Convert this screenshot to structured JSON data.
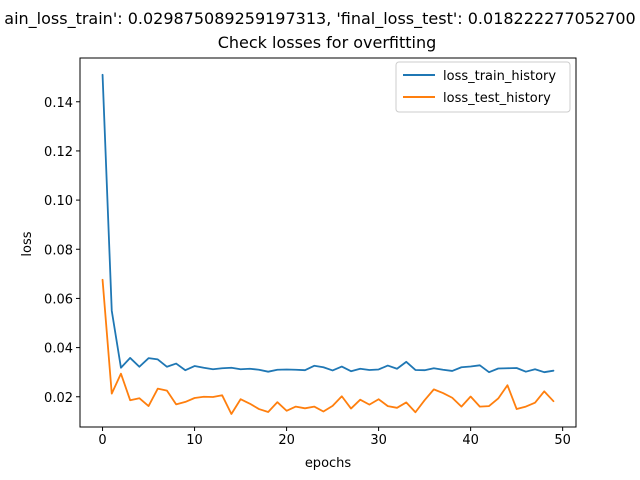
{
  "chart_data": {
    "type": "line",
    "suptitle": "ain_loss_train': 0.029875089259197313, 'final_loss_test': 0.018222277052700",
    "title": "Check losses for overfitting",
    "xlabel": "epochs",
    "ylabel": "loss",
    "xlim": [
      -2.45,
      51.45
    ],
    "ylim": [
      0.0077,
      0.1578
    ],
    "xticks": [
      0,
      10,
      20,
      30,
      40,
      50
    ],
    "yticks": [
      0.02,
      0.04,
      0.06,
      0.08,
      0.1,
      0.12,
      0.14
    ],
    "ytick_labels": [
      "0.02",
      "0.04",
      "0.06",
      "0.08",
      "0.10",
      "0.12",
      "0.14"
    ],
    "legend_position": "top-right",
    "x": [
      0,
      1,
      2,
      3,
      4,
      5,
      6,
      7,
      8,
      9,
      10,
      11,
      12,
      13,
      14,
      15,
      16,
      17,
      18,
      19,
      20,
      21,
      22,
      23,
      24,
      25,
      26,
      27,
      28,
      29,
      30,
      31,
      32,
      33,
      34,
      35,
      36,
      37,
      38,
      39,
      40,
      41,
      42,
      43,
      44,
      45,
      46,
      47,
      48,
      49
    ],
    "series": [
      {
        "name": "loss_train_history",
        "color": "#1f77b4",
        "values": [
          0.151,
          0.055,
          0.0318,
          0.0358,
          0.0322,
          0.0357,
          0.0352,
          0.0322,
          0.0335,
          0.0308,
          0.0325,
          0.0318,
          0.0312,
          0.0316,
          0.0318,
          0.0312,
          0.0314,
          0.031,
          0.0302,
          0.031,
          0.0311,
          0.031,
          0.0308,
          0.0326,
          0.032,
          0.0307,
          0.0323,
          0.0304,
          0.0314,
          0.0309,
          0.0311,
          0.0327,
          0.0314,
          0.0342,
          0.0309,
          0.0308,
          0.0316,
          0.031,
          0.0305,
          0.032,
          0.0323,
          0.0328,
          0.03,
          0.0315,
          0.0316,
          0.0317,
          0.0302,
          0.0312,
          0.03,
          0.0306
        ]
      },
      {
        "name": "loss_test_history",
        "color": "#ff7f0e",
        "values": [
          0.0676,
          0.0213,
          0.0294,
          0.0186,
          0.0194,
          0.0162,
          0.0233,
          0.0225,
          0.0169,
          0.0179,
          0.0195,
          0.02,
          0.0199,
          0.0206,
          0.013,
          0.019,
          0.0172,
          0.015,
          0.0138,
          0.0178,
          0.0143,
          0.016,
          0.0153,
          0.016,
          0.014,
          0.0163,
          0.0202,
          0.0152,
          0.0188,
          0.0168,
          0.019,
          0.0162,
          0.0155,
          0.0177,
          0.0137,
          0.0186,
          0.023,
          0.0215,
          0.0196,
          0.016,
          0.0201,
          0.016,
          0.0162,
          0.0193,
          0.0247,
          0.015,
          0.016,
          0.0176,
          0.0222,
          0.0182
        ]
      }
    ]
  }
}
